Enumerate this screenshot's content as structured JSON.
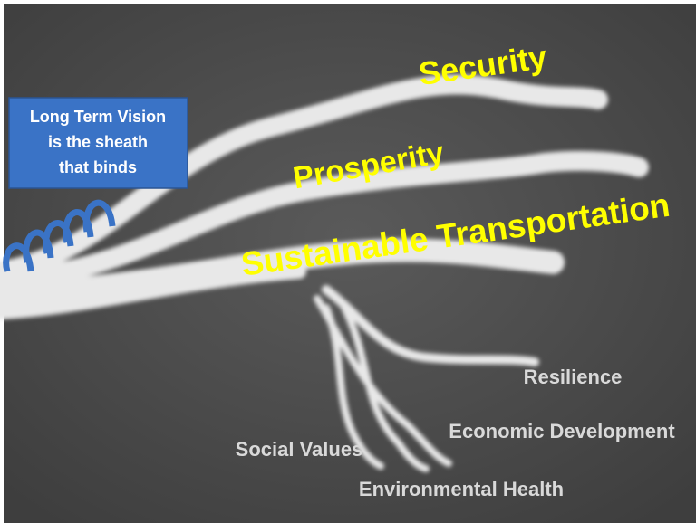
{
  "callout": {
    "lines": [
      "Long Term Vision",
      "is the sheath",
      "that binds"
    ]
  },
  "strands": [
    {
      "label": "Security"
    },
    {
      "label": "Prosperity"
    },
    {
      "label": "Sustainable Transportation"
    }
  ],
  "sub_strands": [
    {
      "label": "Resilience"
    },
    {
      "label": "Economic Development"
    },
    {
      "label": "Social Values"
    },
    {
      "label": "Environmental Health"
    }
  ]
}
